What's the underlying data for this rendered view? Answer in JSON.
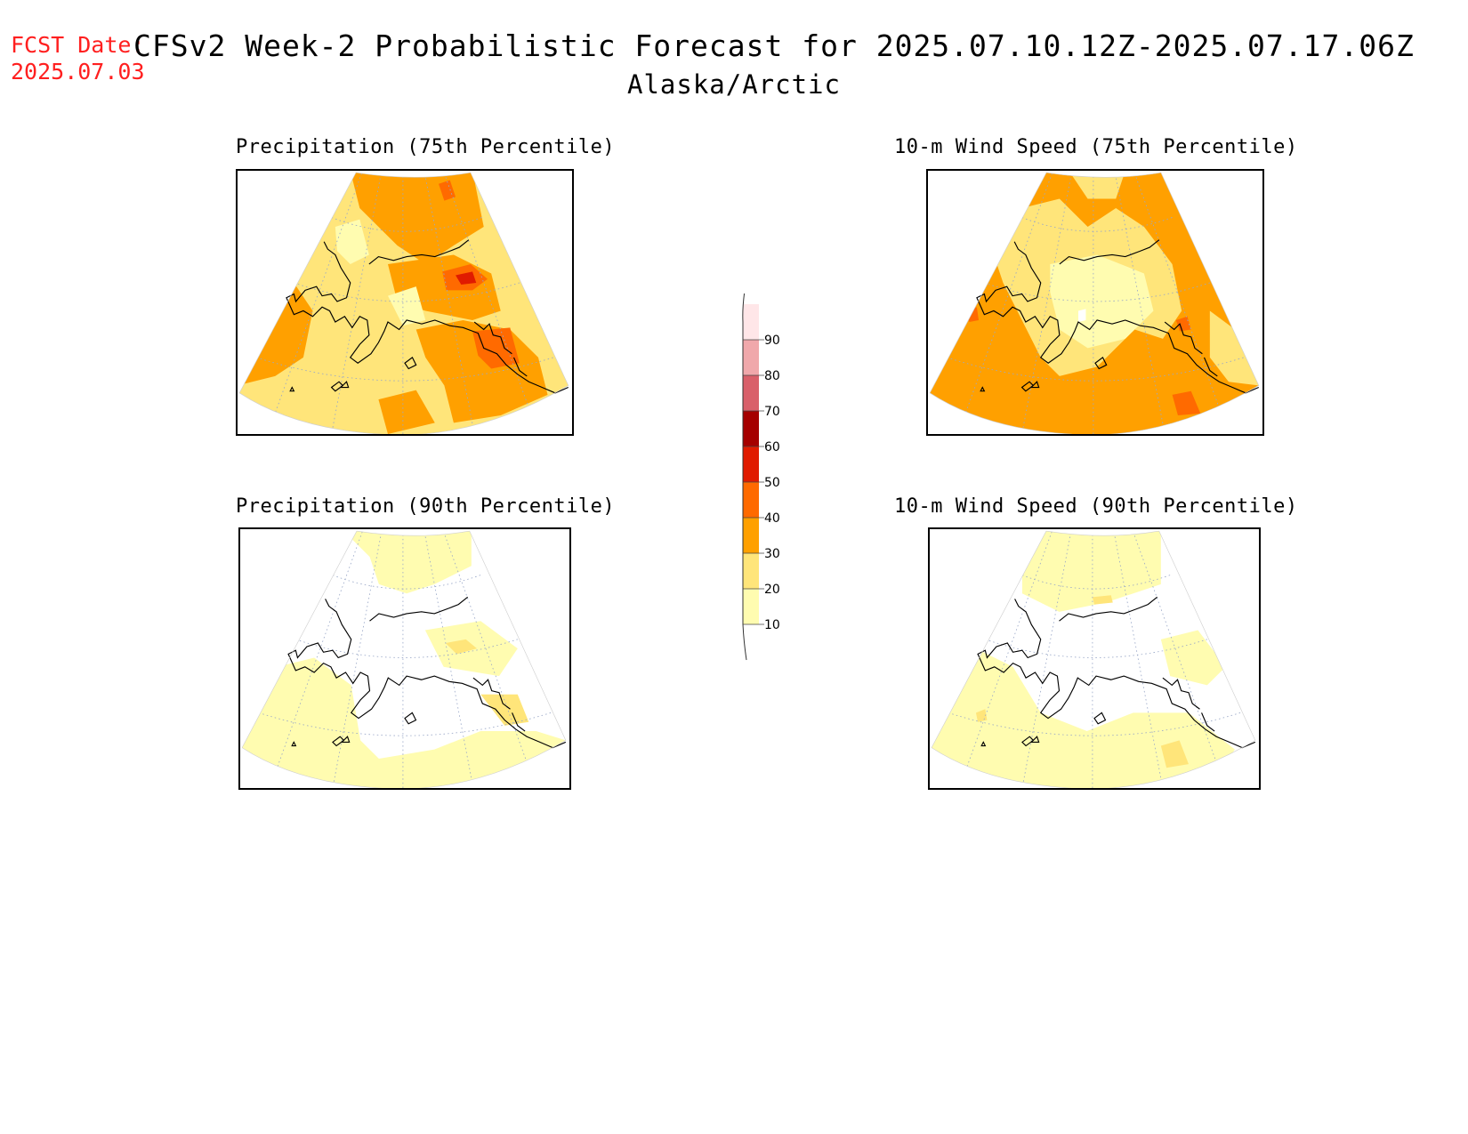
{
  "header": {
    "fcst_label": "FCST Date:",
    "fcst_date": "2025.07.03",
    "title": "CFSv2 Week-2 Probabilistic Forecast for 2025.07.10.12Z-2025.07.17.06Z",
    "subtitle": "Alaska/Arctic"
  },
  "panels": [
    {
      "title": "Precipitation (75th Percentile)",
      "variant": "p75"
    },
    {
      "title": "10-m Wind Speed (75th Percentile)",
      "variant": "w75"
    },
    {
      "title": "Precipitation (90th Percentile)",
      "variant": "p90"
    },
    {
      "title": "10-m Wind Speed (90th Percentile)",
      "variant": "w90"
    }
  ],
  "colorbar": {
    "levels": [
      10,
      20,
      30,
      40,
      50,
      60,
      70,
      80,
      90
    ],
    "colors": [
      "#fffcb0",
      "#ffe57a",
      "#ffa000",
      "#ff6a00",
      "#e01b00",
      "#a50000",
      "#d9606a",
      "#f0a8ab",
      "#ffe6e8"
    ]
  }
}
